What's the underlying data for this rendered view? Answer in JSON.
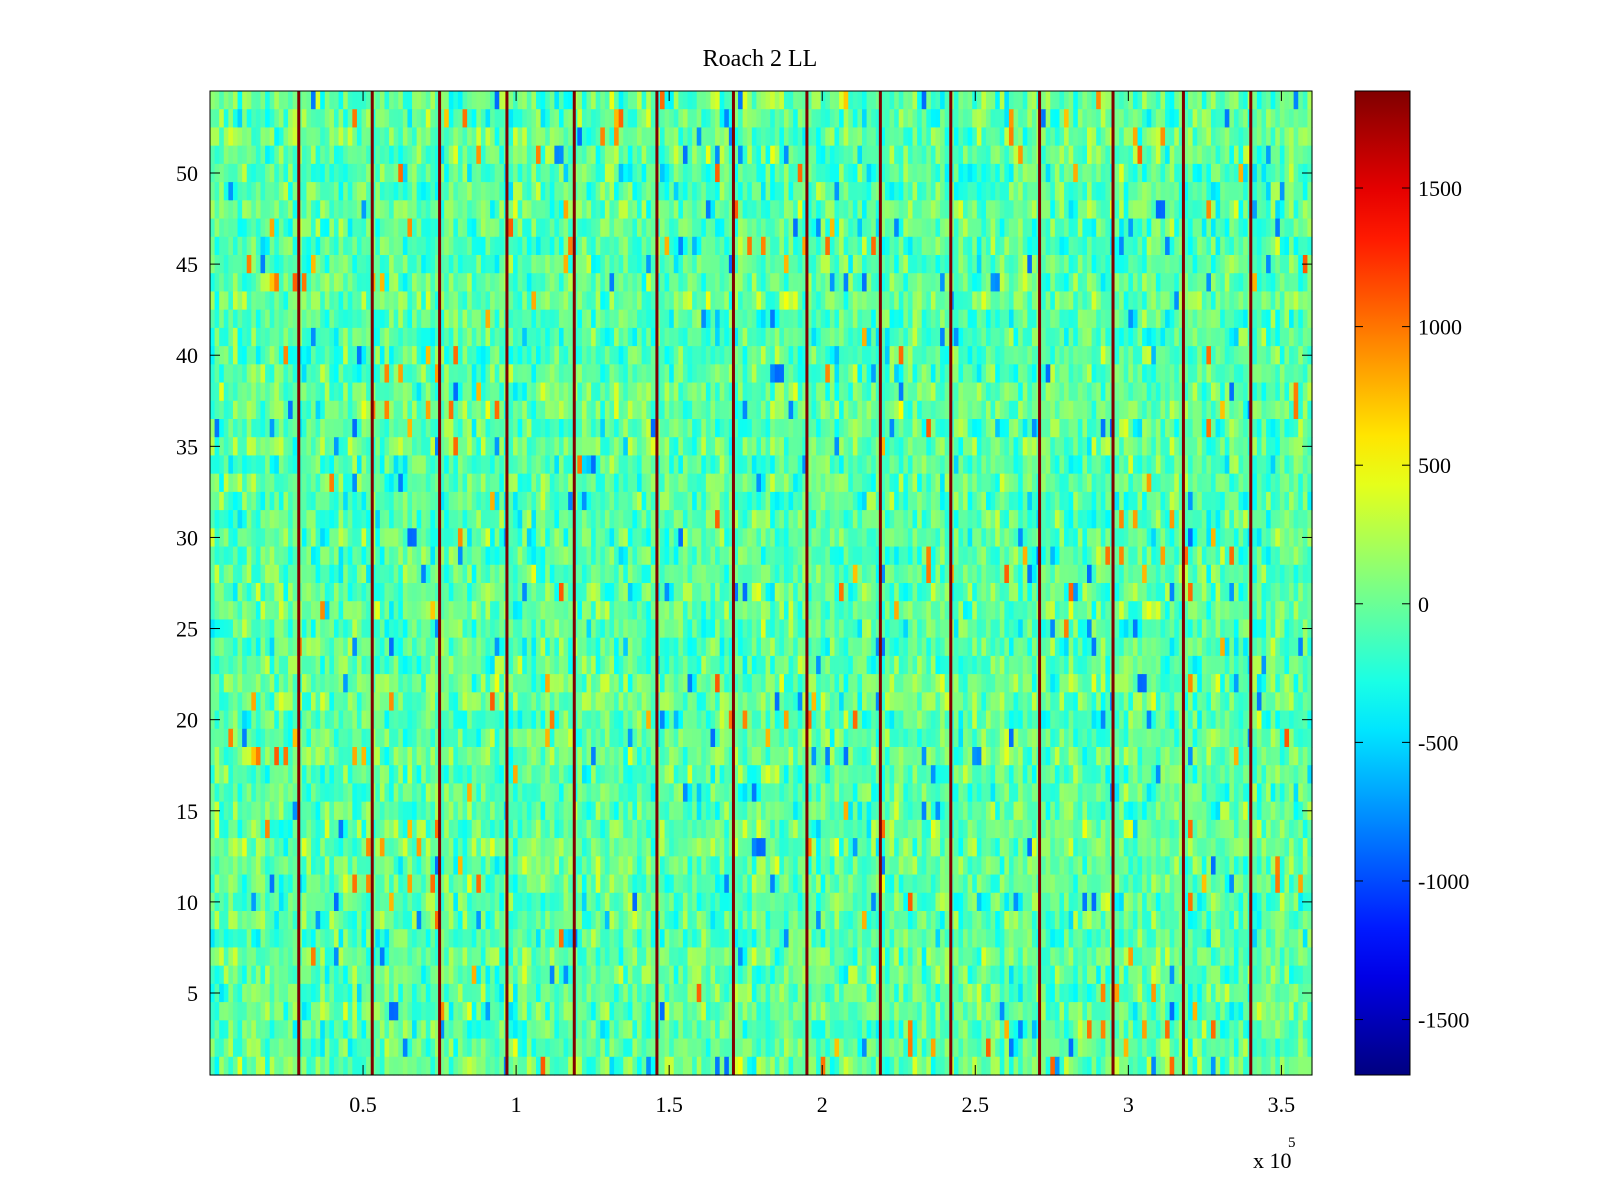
{
  "chart_data": {
    "type": "heatmap",
    "title": "Roach 2 LL",
    "xlabel": "",
    "ylabel": "",
    "x_exponent_label": "x 10",
    "x_exponent": "5",
    "x_range": [
      0,
      360000
    ],
    "y_range": [
      0.5,
      54.5
    ],
    "rows": 54,
    "x_ticks": [
      {
        "value": 50000,
        "label": "0.5"
      },
      {
        "value": 100000,
        "label": "1"
      },
      {
        "value": 150000,
        "label": "1.5"
      },
      {
        "value": 200000,
        "label": "2"
      },
      {
        "value": 250000,
        "label": "2.5"
      },
      {
        "value": 300000,
        "label": "3"
      },
      {
        "value": 350000,
        "label": "3.5"
      }
    ],
    "y_ticks": [
      {
        "value": 5,
        "label": "5"
      },
      {
        "value": 10,
        "label": "10"
      },
      {
        "value": 15,
        "label": "15"
      },
      {
        "value": 20,
        "label": "20"
      },
      {
        "value": 25,
        "label": "25"
      },
      {
        "value": 30,
        "label": "30"
      },
      {
        "value": 35,
        "label": "35"
      },
      {
        "value": 40,
        "label": "40"
      },
      {
        "value": 45,
        "label": "45"
      },
      {
        "value": 50,
        "label": "50"
      }
    ],
    "colorbar": {
      "colormap": "jet",
      "range": [
        -1700,
        1850
      ],
      "ticks": [
        {
          "value": 1500,
          "label": "1500"
        },
        {
          "value": 1000,
          "label": "1000"
        },
        {
          "value": 500,
          "label": "500"
        },
        {
          "value": 0,
          "label": "0"
        },
        {
          "value": -500,
          "label": "-500"
        },
        {
          "value": -1000,
          "label": "-1000"
        },
        {
          "value": -1500,
          "label": "-1500"
        }
      ]
    },
    "background_value_range": [
      -600,
      500
    ],
    "spike_value": 1850,
    "spike_x_positions": [
      29000,
      53000,
      75000,
      97000,
      119000,
      146000,
      171000,
      195000,
      219000,
      242000,
      271000,
      295000,
      318000,
      340000
    ],
    "grid": false,
    "legend": "none"
  }
}
